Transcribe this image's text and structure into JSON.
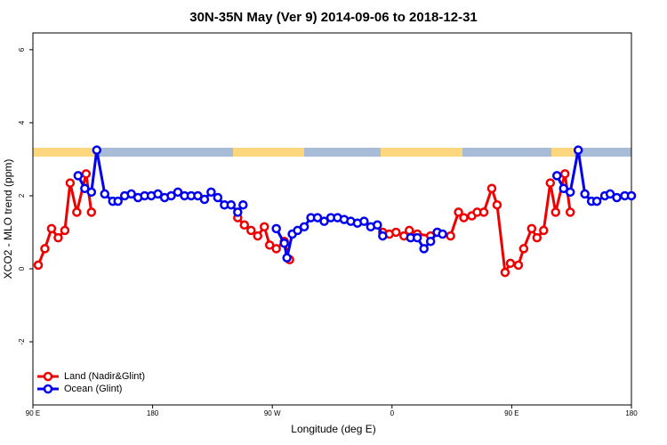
{
  "chart_data": {
    "type": "line",
    "title": "30N-35N May (Ver 9)   2014-09-06 to 2018-12-31",
    "x_label": "Longitude (deg E)",
    "y_label": "XCO2 - MLO trend (ppm)",
    "xlim": [
      90,
      540
    ],
    "ylim": [
      -3.73,
      6.46
    ],
    "xticks": [
      {
        "value": 90,
        "label": "90 E"
      },
      180,
      {
        "value": 270,
        "label": "90 W"
      },
      {
        "value": 360,
        "label": "0"
      },
      {
        "value": 450,
        "label": "90 E"
      },
      {
        "value": 540,
        "label": "180"
      }
    ],
    "yticks": [
      -2,
      0,
      2,
      4,
      6
    ],
    "legend": "bottomleft",
    "series": [
      {
        "name": "Land (Nadir&Glint)",
        "color": "#ee0000",
        "x": [
          94,
          99,
          104,
          109,
          114,
          118,
          123,
          130,
          134,
          null,
          244,
          249,
          254,
          259,
          264,
          268,
          273,
          279,
          283,
          null,
          353,
          358,
          363,
          369,
          373,
          379,
          389,
          394,
          404,
          410,
          414,
          420,
          424,
          429,
          435,
          439,
          445,
          449,
          455,
          459,
          465,
          469,
          474,
          479,
          483,
          490,
          494
        ],
        "values": [
          0.1,
          0.55,
          1.1,
          0.85,
          1.05,
          2.35,
          1.55,
          2.6,
          1.55,
          null,
          1.4,
          1.2,
          1.05,
          0.9,
          1.15,
          0.65,
          0.55,
          0.75,
          0.25,
          null,
          1.0,
          0.95,
          1.0,
          0.9,
          1.05,
          0.95,
          0.9,
          1.0,
          0.9,
          1.55,
          1.4,
          1.45,
          1.55,
          1.55,
          2.2,
          1.75,
          -0.1,
          0.15,
          0.1,
          0.55,
          1.1,
          0.85,
          1.05,
          2.35,
          1.55,
          2.6,
          1.55
        ]
      },
      {
        "name": "Ocean (Glint)",
        "color": "#0000ee",
        "x": [
          124,
          129,
          134,
          138,
          144,
          150,
          154,
          159,
          164,
          169,
          174,
          179,
          184,
          189,
          194,
          199,
          204,
          209,
          214,
          219,
          224,
          229,
          234,
          239,
          244,
          248,
          null,
          273,
          279,
          281,
          285,
          289,
          294,
          299,
          304,
          309,
          314,
          319,
          324,
          329,
          334,
          339,
          344,
          349,
          353,
          null,
          374,
          379,
          384,
          389,
          394,
          398,
          null,
          484,
          489,
          494,
          500,
          505,
          510,
          514,
          520,
          524,
          529,
          535,
          540
        ],
        "values": [
          2.55,
          2.2,
          2.1,
          3.25,
          2.05,
          1.85,
          1.85,
          2.0,
          2.05,
          1.95,
          2.0,
          2.0,
          2.05,
          1.95,
          2.0,
          2.1,
          2.0,
          2.0,
          2.0,
          1.9,
          2.1,
          1.95,
          1.75,
          1.75,
          1.55,
          1.75,
          null,
          1.1,
          0.7,
          0.3,
          0.95,
          1.05,
          1.15,
          1.4,
          1.4,
          1.3,
          1.4,
          1.4,
          1.35,
          1.3,
          1.25,
          1.3,
          1.15,
          1.2,
          0.9,
          null,
          0.85,
          0.85,
          0.55,
          0.75,
          1.0,
          0.95,
          null,
          2.55,
          2.2,
          2.1,
          3.25,
          2.05,
          1.85,
          1.85,
          2.0,
          2.05,
          1.95,
          2.0,
          2.0
        ]
      }
    ]
  }
}
